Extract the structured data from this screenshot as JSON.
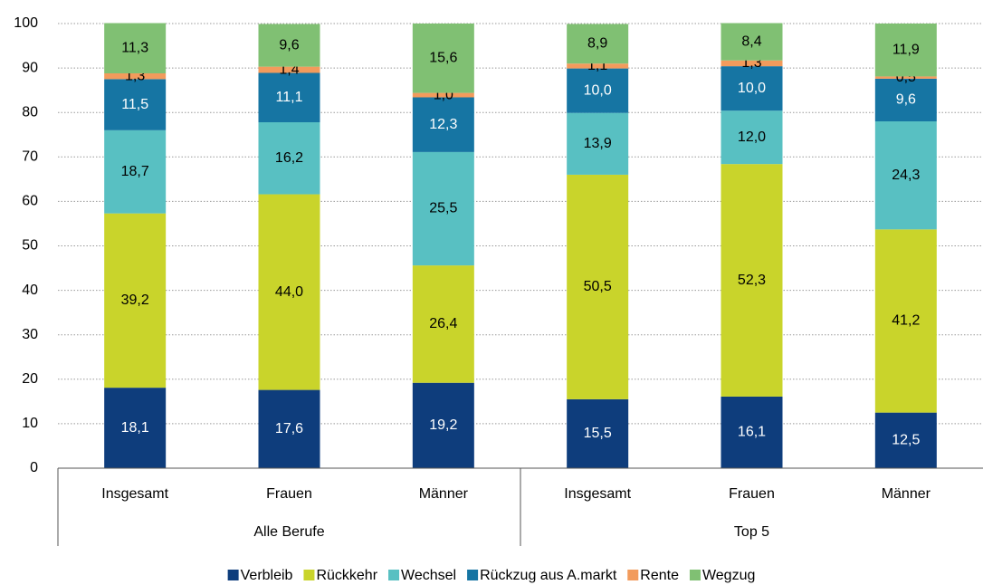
{
  "chart_data": {
    "type": "stacked_bar",
    "categories": [
      "Insgesamt",
      "Frauen",
      "Männer",
      "Insgesamt",
      "Frauen",
      "Männer"
    ],
    "groups": [
      "Alle Berufe",
      "Top 5"
    ],
    "series": [
      {
        "name": "Verbleib",
        "color": "#0e3d7c",
        "values": [
          18.1,
          17.6,
          19.2,
          15.5,
          16.1,
          12.5
        ],
        "value_labels": [
          "18,1",
          "17,6",
          "19,2",
          "15,5",
          "16,1",
          "12,5"
        ]
      },
      {
        "name": "Rückkehr",
        "color": "#c9d42b",
        "values": [
          39.2,
          44.0,
          26.4,
          50.5,
          52.3,
          41.2
        ],
        "value_labels": [
          "39,2",
          "44,0",
          "26,4",
          "50,5",
          "52,3",
          "41,2"
        ]
      },
      {
        "name": "Wechsel",
        "color": "#58c0c2",
        "values": [
          18.7,
          16.2,
          25.5,
          13.9,
          12.0,
          24.3
        ],
        "value_labels": [
          "18,7",
          "16,2",
          "25,5",
          "13,9",
          "12,0",
          "24,3"
        ]
      },
      {
        "name": "Rückzug aus A.markt",
        "color": "#1675a3",
        "values": [
          11.5,
          11.1,
          12.3,
          10.0,
          10.0,
          9.6
        ],
        "value_labels": [
          "11,5",
          "11,1",
          "12,3",
          "10,0",
          "10,0",
          "9,6"
        ]
      },
      {
        "name": "Rente",
        "color": "#f29b5c",
        "values": [
          1.3,
          1.4,
          1.0,
          1.1,
          1.3,
          0.5
        ],
        "value_labels": [
          "1,3",
          "1,4",
          "1,0",
          "1,1",
          "1,3",
          "0,5"
        ]
      },
      {
        "name": "Wegzug",
        "color": "#80c073",
        "values": [
          11.3,
          9.6,
          15.6,
          8.9,
          8.4,
          11.9
        ],
        "value_labels": [
          "11,3",
          "9,6",
          "15,6",
          "8,9",
          "8,4",
          "11,9"
        ]
      }
    ],
    "ylim": [
      0,
      100
    ],
    "yticks": [
      0,
      10,
      20,
      30,
      40,
      50,
      60,
      70,
      80,
      90,
      100
    ],
    "grid": true,
    "legend": "bottom"
  }
}
